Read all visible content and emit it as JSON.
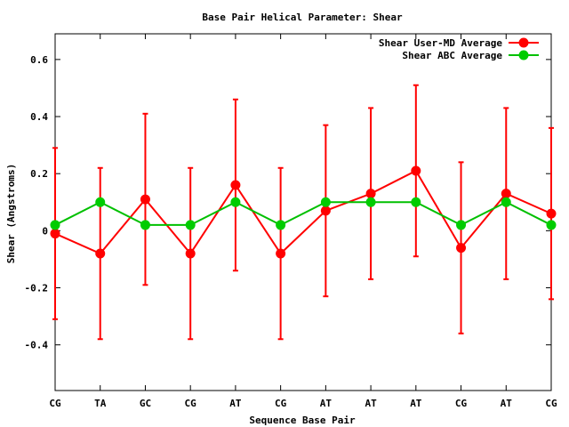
{
  "chart_data": {
    "type": "line",
    "title": "Base Pair Helical Parameter: Shear",
    "xlabel": "Sequence Base Pair",
    "ylabel": "Shear (Angstroms)",
    "categories": [
      "CG",
      "TA",
      "GC",
      "CG",
      "AT",
      "CG",
      "AT",
      "AT",
      "AT",
      "CG",
      "AT",
      "CG"
    ],
    "ylim": [
      -0.56,
      0.69
    ],
    "yticks": [
      -0.4,
      -0.2,
      0,
      0.2,
      0.4,
      0.6
    ],
    "ytick_labels": [
      "-0.4",
      "-0.2",
      "0",
      "0.2",
      "0.4",
      "0.6"
    ],
    "grid": false,
    "legend_position": "top-right",
    "series": [
      {
        "name": "Shear User-MD Average",
        "color": "#ff0000",
        "marker_color": "#ff0000",
        "values": [
          -0.01,
          -0.08,
          0.11,
          -0.08,
          0.16,
          -0.08,
          0.07,
          0.13,
          0.21,
          -0.06,
          0.13,
          0.06
        ],
        "error_low": [
          -0.31,
          -0.38,
          -0.19,
          -0.38,
          -0.14,
          -0.38,
          -0.23,
          -0.17,
          -0.09,
          -0.36,
          -0.17,
          -0.24
        ],
        "error_high": [
          0.29,
          0.22,
          0.41,
          0.22,
          0.46,
          0.22,
          0.37,
          0.43,
          0.51,
          0.24,
          0.43,
          0.36
        ]
      },
      {
        "name": "Shear ABC Average",
        "color": "#00c000",
        "marker_color": "#00cc00",
        "values": [
          0.02,
          0.1,
          0.02,
          0.02,
          0.1,
          0.02,
          0.1,
          0.1,
          0.1,
          0.02,
          0.1,
          0.02
        ]
      }
    ]
  }
}
